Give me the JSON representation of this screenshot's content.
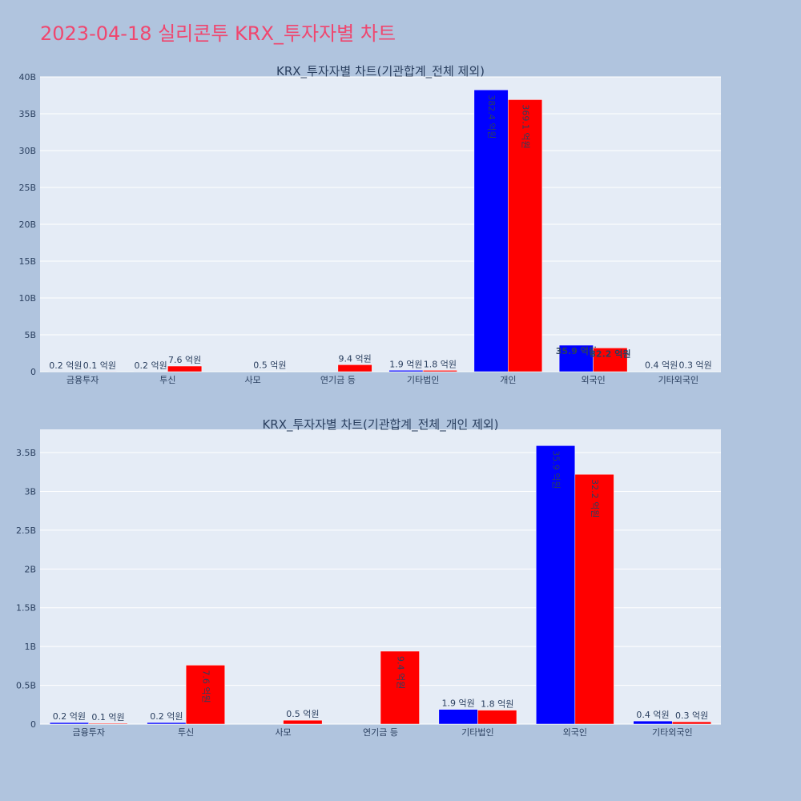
{
  "title": "2023-04-18 실리콘투 KRX_투자자별 차트",
  "chart_data": [
    {
      "type": "bar",
      "title": "KRX_투자자별 차트(기관합계_전체 제외)",
      "categories": [
        "금융투자",
        "투신",
        "사모",
        "연기금 등",
        "기타법인",
        "개인",
        "외국인",
        "기타외국인"
      ],
      "series": [
        {
          "color": "#0000ff",
          "values": [
            20000000,
            20000000,
            0,
            0,
            190000000,
            38240000000,
            3590000000,
            40000000
          ],
          "labels": [
            "0.2 억원",
            "0.2 억원",
            "",
            "",
            "1.9 억원",
            "382.4 억원",
            "35.9 억원",
            "0.4 억원"
          ]
        },
        {
          "color": "#ff0000",
          "values": [
            10000000,
            760000000,
            50000000,
            940000000,
            180000000,
            36910000000,
            3220000000,
            30000000
          ],
          "labels": [
            "0.1 억원",
            "7.6 억원",
            "0.5 억원",
            "9.4 억원",
            "1.8 억원",
            "369.1 억원",
            "32.2 억원",
            "0.3 억원"
          ]
        }
      ],
      "ylim": [
        0,
        40000000000
      ],
      "yticks": [
        0,
        5000000000,
        10000000000,
        15000000000,
        20000000000,
        25000000000,
        30000000000,
        35000000000,
        40000000000
      ],
      "ytick_labels": [
        "0",
        "5B",
        "10B",
        "15B",
        "20B",
        "25B",
        "30B",
        "35B",
        "40B"
      ],
      "grid": true
    },
    {
      "type": "bar",
      "title": "KRX_투자자별 차트(기관합계_전체_개인 제외)",
      "categories": [
        "금융투자",
        "투신",
        "사모",
        "연기금 등",
        "기타법인",
        "외국인",
        "기타외국인"
      ],
      "series": [
        {
          "color": "#0000ff",
          "values": [
            20000000,
            20000000,
            0,
            0,
            190000000,
            3590000000,
            40000000
          ],
          "labels": [
            "0.2 억원",
            "0.2 억원",
            "",
            "",
            "1.9 억원",
            "35.9 억원",
            "0.4 억원"
          ]
        },
        {
          "color": "#ff0000",
          "values": [
            10000000,
            760000000,
            50000000,
            940000000,
            180000000,
            3220000000,
            30000000
          ],
          "labels": [
            "0.1 억원",
            "7.6 억원",
            "0.5 억원",
            "9.4 억원",
            "1.8 억원",
            "32.2 억원",
            "0.3 억원"
          ]
        }
      ],
      "ylim": [
        0,
        3800000000
      ],
      "yticks": [
        0,
        500000000,
        1000000000,
        1500000000,
        2000000000,
        2500000000,
        3000000000,
        3500000000
      ],
      "ytick_labels": [
        "0",
        "0.5B",
        "1B",
        "1.5B",
        "2B",
        "2.5B",
        "3B",
        "3.5B"
      ],
      "grid": true
    }
  ]
}
